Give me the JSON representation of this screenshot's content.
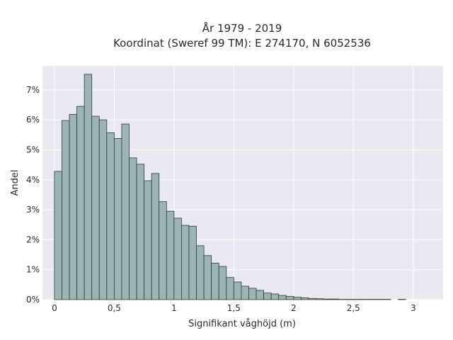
{
  "chart_data": {
    "type": "bar",
    "title": "År 1979 - 2019",
    "subtitle": "Koordinat (Sweref 99 TM): E 274170, N 6052536",
    "xlabel": "Signifikant våghöjd (m)",
    "ylabel": "Andel",
    "xlim": [
      -0.1,
      3.25
    ],
    "ylim": [
      0,
      7.8
    ],
    "x_ticks": [
      {
        "value": 0,
        "label": "0"
      },
      {
        "value": 0.5,
        "label": "0,5"
      },
      {
        "value": 1,
        "label": "1"
      },
      {
        "value": 1.5,
        "label": "1,5"
      },
      {
        "value": 2,
        "label": "2"
      },
      {
        "value": 2.5,
        "label": "2,5"
      },
      {
        "value": 3,
        "label": "3"
      }
    ],
    "y_ticks": [
      {
        "value": 0,
        "label": "0%"
      },
      {
        "value": 1,
        "label": "1%"
      },
      {
        "value": 2,
        "label": "2%"
      },
      {
        "value": 3,
        "label": "3%"
      },
      {
        "value": 4,
        "label": "4%"
      },
      {
        "value": 5,
        "label": "5%"
      },
      {
        "value": 6,
        "label": "6%"
      },
      {
        "value": 7,
        "label": "7%"
      }
    ],
    "grid": true,
    "bar_color": "#9cb4b4",
    "bar_edge_color": "#2e3b3b",
    "background_color": "#e9e9f1",
    "bin_width": 0.0625,
    "bin_starts": [
      0.0,
      0.0625,
      0.125,
      0.1875,
      0.25,
      0.3125,
      0.375,
      0.4375,
      0.5,
      0.5625,
      0.625,
      0.6875,
      0.75,
      0.8125,
      0.875,
      0.9375,
      1.0,
      1.0625,
      1.125,
      1.1875,
      1.25,
      1.3125,
      1.375,
      1.4375,
      1.5,
      1.5625,
      1.625,
      1.6875,
      1.75,
      1.8125,
      1.875,
      1.9375,
      2.0,
      2.0625,
      2.125,
      2.1875,
      2.25,
      2.3125,
      2.375,
      2.4375,
      2.5,
      2.5625,
      2.625,
      2.6875,
      2.75,
      2.875
    ],
    "values": [
      4.28,
      5.98,
      6.18,
      6.45,
      7.52,
      6.12,
      6.0,
      5.57,
      5.38,
      5.86,
      4.73,
      4.52,
      3.97,
      4.21,
      3.27,
      2.95,
      2.72,
      2.48,
      2.45,
      1.8,
      1.47,
      1.22,
      1.11,
      0.74,
      0.59,
      0.45,
      0.38,
      0.31,
      0.22,
      0.19,
      0.14,
      0.11,
      0.08,
      0.06,
      0.04,
      0.03,
      0.02,
      0.02,
      0.01,
      0.01,
      0.01,
      0.01,
      0.01,
      0.01,
      0.01,
      0.01
    ]
  }
}
